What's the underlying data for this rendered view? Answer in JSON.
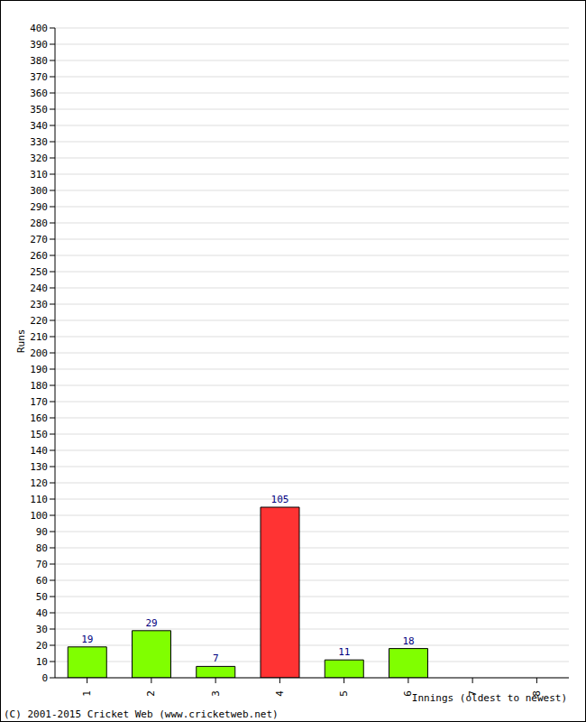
{
  "chart_data": {
    "type": "bar",
    "categories": [
      "1",
      "2",
      "3",
      "4",
      "5",
      "6",
      "7",
      "8"
    ],
    "values": [
      19,
      29,
      7,
      105,
      11,
      18,
      0,
      0
    ],
    "colors": [
      "#80ff00",
      "#80ff00",
      "#80ff00",
      "#ff3333",
      "#80ff00",
      "#80ff00",
      "#80ff00",
      "#80ff00"
    ],
    "ylim": [
      0,
      400
    ],
    "yticks": [
      0,
      10,
      20,
      30,
      40,
      50,
      60,
      70,
      80,
      90,
      100,
      110,
      120,
      130,
      140,
      150,
      160,
      170,
      180,
      190,
      200,
      210,
      220,
      230,
      240,
      250,
      260,
      270,
      280,
      290,
      300,
      310,
      320,
      330,
      340,
      350,
      360,
      370,
      380,
      390,
      400
    ],
    "grid": true,
    "data_labels": true,
    "y_label": "Runs",
    "x_label": "Innings (oldest to newest)",
    "annotations": [
      "(C) 2001-2015 Cricket Web (www.cricketweb.net)"
    ]
  }
}
